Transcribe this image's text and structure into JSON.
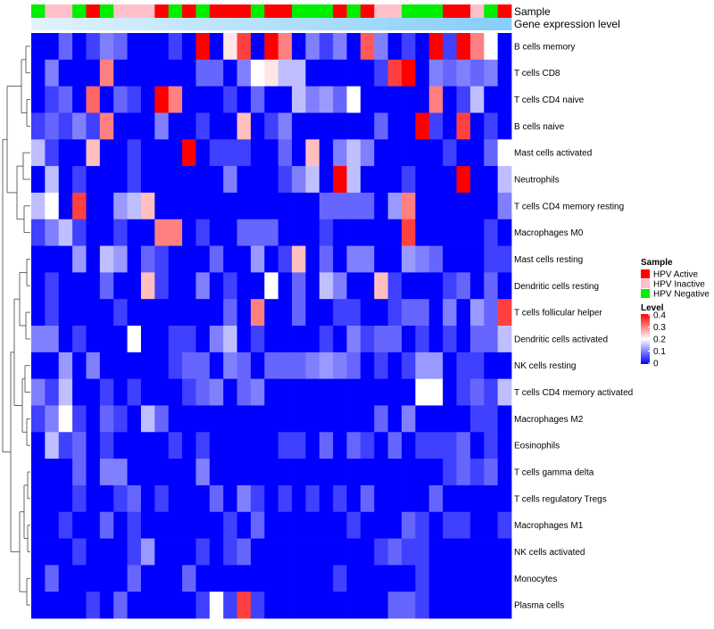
{
  "chart_data": {
    "type": "heatmap",
    "annotation_labels": {
      "sample": "Sample",
      "gene": "Gene expression level"
    },
    "legend": {
      "sample_title": "Sample",
      "sample_entries": [
        {
          "label": "HPV Active",
          "color": "#ff0000"
        },
        {
          "label": "HPV Inactive",
          "color": "#ffc0cb"
        },
        {
          "label": "HPV Negative",
          "color": "#00ee00"
        }
      ],
      "level_title": "Level",
      "level_ticks": [
        "0.4",
        "0.3",
        "0.2",
        "0.1",
        "0"
      ],
      "level_range": [
        0,
        0.4
      ],
      "colors": {
        "low": "#0000ff",
        "mid": "#ffffff",
        "high": "#ff0000"
      }
    },
    "row_labels": [
      "B cells memory",
      "T cells CD8",
      "T cells CD4 naive",
      "B cells naive",
      "Mast cells activated",
      "Neutrophils",
      "T cells CD4 memory resting",
      "Macrophages M0",
      "Mast cells resting",
      "Dendritic cells resting",
      "T cells follicular helper",
      "Dendritic cells activated",
      "NK cells resting",
      "T cells CD4 memory activated",
      "Macrophages M2",
      "Eosinophils",
      "T cells gamma delta",
      "T cells regulatory  Tregs",
      "Macrophages M1",
      "NK cells activated",
      "Monocytes",
      "Plasma cells"
    ],
    "sample_groups": [
      "N",
      "I",
      "I",
      "N",
      "A",
      "N",
      "I",
      "I",
      "I",
      "A",
      "N",
      "A",
      "N",
      "A",
      "A",
      "A",
      "N",
      "A",
      "A",
      "N",
      "N",
      "N",
      "A",
      "N",
      "A",
      "I",
      "I",
      "N",
      "N",
      "N",
      "A",
      "A",
      "I",
      "N",
      "A"
    ],
    "gene_expression_bar": [
      0.02,
      0.03,
      0.04,
      0.05,
      0.06,
      0.07,
      0.08,
      0.09,
      0.1,
      0.11,
      0.12,
      0.13,
      0.14,
      0.15,
      0.16,
      0.17,
      0.18,
      0.19,
      0.2,
      0.21,
      0.22,
      0.23,
      0.24,
      0.25,
      0.26,
      0.27,
      0.28,
      0.29,
      0.3,
      0.31,
      0.32,
      0.33,
      0.34,
      0.35,
      0.36
    ],
    "matrix": [
      [
        0,
        0,
        0.08,
        0,
        0.05,
        0.1,
        0.08,
        0,
        0,
        0,
        0.05,
        0,
        0.4,
        0,
        0.22,
        0.35,
        0,
        0.4,
        0.3,
        0,
        0.1,
        0.05,
        0.1,
        0,
        0.33,
        0.1,
        0,
        0.05,
        0,
        0.4,
        0.05,
        0.4,
        0.3,
        0.2,
        0
      ],
      [
        0,
        0.1,
        0,
        0,
        0,
        0.3,
        0,
        0,
        0,
        0,
        0,
        0,
        0.08,
        0.08,
        0,
        0.1,
        0.2,
        0.22,
        0.15,
        0.15,
        0,
        0,
        0,
        0,
        0,
        0.05,
        0.35,
        0.4,
        0,
        0.1,
        0.08,
        0.1,
        0.08,
        0.1,
        0
      ],
      [
        0,
        0.05,
        0.08,
        0,
        0.32,
        0,
        0.08,
        0.05,
        0,
        0.4,
        0.3,
        0,
        0,
        0,
        0.05,
        0,
        0.08,
        0,
        0,
        0.15,
        0.1,
        0.12,
        0.08,
        0.2,
        0,
        0,
        0,
        0,
        0,
        0.3,
        0,
        0.05,
        0.15,
        0,
        0
      ],
      [
        0.05,
        0.08,
        0.05,
        0.1,
        0.05,
        0.3,
        0,
        0,
        0,
        0.1,
        0,
        0,
        0.05,
        0,
        0,
        0.25,
        0,
        0.05,
        0.1,
        0,
        0,
        0,
        0,
        0,
        0,
        0.08,
        0,
        0,
        0.4,
        0.05,
        0,
        0.35,
        0,
        0.05,
        0
      ],
      [
        0.15,
        0.05,
        0,
        0,
        0.25,
        0,
        0,
        0.05,
        0,
        0,
        0,
        0.4,
        0,
        0.05,
        0.05,
        0.05,
        0,
        0,
        0.08,
        0,
        0.25,
        0,
        0.1,
        0.15,
        0.1,
        0,
        0,
        0,
        0,
        0,
        0.05,
        0,
        0,
        0.08,
        0.2
      ],
      [
        0,
        0.15,
        0,
        0.05,
        0,
        0,
        0,
        0.05,
        0,
        0,
        0,
        0,
        0,
        0,
        0.1,
        0,
        0,
        0,
        0.05,
        0.1,
        0.15,
        0,
        0.4,
        0.15,
        0,
        0,
        0,
        0.05,
        0,
        0,
        0,
        0.4,
        0,
        0,
        0.15
      ],
      [
        0.15,
        0.2,
        0,
        0.35,
        0,
        0,
        0.12,
        0.15,
        0.25,
        0,
        0,
        0,
        0,
        0,
        0,
        0,
        0,
        0,
        0,
        0,
        0,
        0.08,
        0.08,
        0.08,
        0.08,
        0,
        0.12,
        0.3,
        0,
        0,
        0,
        0,
        0,
        0,
        0.1
      ],
      [
        0.05,
        0.1,
        0.15,
        0.05,
        0,
        0,
        0.05,
        0,
        0,
        0.3,
        0.3,
        0,
        0.05,
        0,
        0,
        0.08,
        0.08,
        0.08,
        0,
        0,
        0,
        0.05,
        0,
        0,
        0,
        0,
        0,
        0.35,
        0,
        0,
        0,
        0,
        0,
        0.05,
        0
      ],
      [
        0,
        0,
        0,
        0.12,
        0,
        0.15,
        0.12,
        0,
        0.08,
        0.05,
        0,
        0,
        0,
        0.08,
        0,
        0,
        0.12,
        0,
        0.05,
        0.25,
        0,
        0.08,
        0,
        0.1,
        0.1,
        0,
        0,
        0.12,
        0.1,
        0.08,
        0,
        0,
        0,
        0.05,
        0.05
      ],
      [
        0,
        0.05,
        0,
        0,
        0,
        0.08,
        0,
        0,
        0.25,
        0.05,
        0,
        0,
        0.1,
        0,
        0.05,
        0,
        0,
        0.2,
        0,
        0.08,
        0,
        0.15,
        0.1,
        0,
        0,
        0.25,
        0.05,
        0,
        0,
        0,
        0.05,
        0.08,
        0,
        0.08,
        0
      ],
      [
        0,
        0.05,
        0,
        0,
        0,
        0,
        0.05,
        0,
        0,
        0,
        0,
        0,
        0,
        0,
        0.08,
        0,
        0.3,
        0,
        0,
        0.08,
        0,
        0,
        0.05,
        0.05,
        0,
        0,
        0.05,
        0.08,
        0.08,
        0,
        0.1,
        0,
        0.12,
        0.08,
        0.35
      ],
      [
        0.1,
        0.1,
        0,
        0.05,
        0,
        0,
        0,
        0.2,
        0,
        0,
        0.05,
        0.05,
        0,
        0.1,
        0.15,
        0,
        0.05,
        0,
        0,
        0,
        0,
        0.05,
        0,
        0.1,
        0.05,
        0.08,
        0.08,
        0,
        0.05,
        0,
        0.05,
        0,
        0.08,
        0.08,
        0.15
      ],
      [
        0,
        0,
        0.12,
        0,
        0.1,
        0,
        0,
        0,
        0,
        0,
        0.05,
        0.08,
        0.08,
        0,
        0.1,
        0.08,
        0,
        0.08,
        0.08,
        0.08,
        0.1,
        0.12,
        0.1,
        0.08,
        0,
        0.05,
        0,
        0.05,
        0.12,
        0.12,
        0,
        0.05,
        0.05,
        0,
        0
      ],
      [
        0.1,
        0.05,
        0.15,
        0,
        0,
        0.05,
        0,
        0.05,
        0,
        0,
        0,
        0.05,
        0.08,
        0.1,
        0,
        0.08,
        0.1,
        0,
        0,
        0,
        0,
        0,
        0,
        0,
        0,
        0,
        0,
        0,
        0.2,
        0.2,
        0,
        0.05,
        0.08,
        0.05,
        0.15
      ],
      [
        0.05,
        0.1,
        0.2,
        0.05,
        0,
        0.08,
        0.05,
        0,
        0.15,
        0.08,
        0,
        0,
        0,
        0,
        0,
        0,
        0,
        0,
        0,
        0,
        0,
        0,
        0,
        0,
        0,
        0.08,
        0,
        0.1,
        0,
        0,
        0,
        0,
        0.05,
        0.05,
        0
      ],
      [
        0,
        0.15,
        0.05,
        0.08,
        0,
        0.05,
        0,
        0,
        0,
        0,
        0.05,
        0,
        0.05,
        0,
        0,
        0,
        0,
        0,
        0.05,
        0.05,
        0,
        0.08,
        0,
        0.08,
        0.05,
        0,
        0.08,
        0,
        0.05,
        0.05,
        0.05,
        0.08,
        0,
        0.05,
        0
      ],
      [
        0,
        0,
        0,
        0.08,
        0,
        0.1,
        0.1,
        0,
        0,
        0,
        0,
        0,
        0.1,
        0,
        0,
        0,
        0,
        0,
        0,
        0,
        0,
        0,
        0,
        0,
        0,
        0,
        0,
        0,
        0,
        0,
        0.05,
        0.08,
        0.05,
        0.08,
        0
      ],
      [
        0,
        0,
        0,
        0.05,
        0,
        0,
        0.05,
        0.08,
        0,
        0.05,
        0,
        0,
        0,
        0.08,
        0,
        0.1,
        0.05,
        0,
        0.05,
        0,
        0.05,
        0,
        0.05,
        0,
        0.08,
        0,
        0,
        0,
        0,
        0.08,
        0,
        0,
        0,
        0,
        0
      ],
      [
        0,
        0,
        0.05,
        0,
        0,
        0.08,
        0,
        0.05,
        0,
        0,
        0,
        0,
        0,
        0,
        0.05,
        0,
        0.08,
        0,
        0,
        0,
        0,
        0,
        0,
        0.05,
        0,
        0,
        0,
        0.08,
        0.05,
        0,
        0.05,
        0.05,
        0,
        0,
        0.05
      ],
      [
        0,
        0,
        0,
        0.05,
        0,
        0,
        0,
        0.05,
        0.12,
        0,
        0,
        0,
        0.05,
        0,
        0.05,
        0.08,
        0,
        0,
        0,
        0,
        0,
        0,
        0,
        0,
        0,
        0.05,
        0.08,
        0.05,
        0.05,
        0,
        0,
        0,
        0,
        0,
        0
      ],
      [
        0,
        0.08,
        0,
        0,
        0,
        0,
        0,
        0.08,
        0,
        0,
        0,
        0.08,
        0,
        0,
        0,
        0,
        0,
        0,
        0,
        0,
        0,
        0,
        0.05,
        0,
        0,
        0,
        0,
        0,
        0.05,
        0,
        0,
        0,
        0,
        0,
        0
      ],
      [
        0,
        0,
        0,
        0,
        0.05,
        0,
        0.08,
        0,
        0,
        0,
        0,
        0,
        0.05,
        0.2,
        0.05,
        0.35,
        0.05,
        0,
        0,
        0,
        0,
        0,
        0,
        0,
        0,
        0,
        0.08,
        0.08,
        0.05,
        0,
        0,
        0,
        0,
        0,
        0
      ]
    ]
  }
}
